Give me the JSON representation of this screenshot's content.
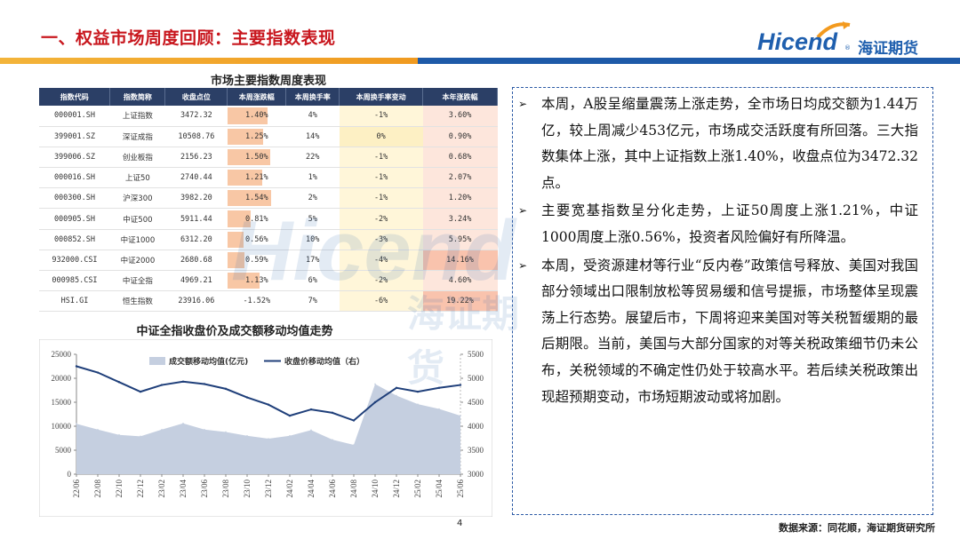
{
  "header": {
    "title": "一、权益市场周度回顾：主要指数表现",
    "logo_en": "Hicend",
    "logo_reg": "®",
    "logo_cn": "海证期货"
  },
  "table": {
    "title": "市场主要指数周度表现",
    "columns": [
      "指数代码",
      "指数简称",
      "收盘点位",
      "本周涨跌幅",
      "本周换手率",
      "本周换手率变动",
      "本年涨跌幅"
    ],
    "rows": [
      {
        "code": "000001.SH",
        "name": "上证指数",
        "close": "3472.32",
        "weekly": "1.40%",
        "weekly_val": 1.4,
        "turnover": "4%",
        "turnover_change": "-1%",
        "ytd": "3.60%"
      },
      {
        "code": "399001.SZ",
        "name": "深证成指",
        "close": "10508.76",
        "weekly": "1.25%",
        "weekly_val": 1.25,
        "turnover": "14%",
        "turnover_change": "0%",
        "ytd": "0.90%"
      },
      {
        "code": "399006.SZ",
        "name": "创业板指",
        "close": "2156.23",
        "weekly": "1.50%",
        "weekly_val": 1.5,
        "turnover": "22%",
        "turnover_change": "-1%",
        "ytd": "0.68%"
      },
      {
        "code": "000016.SH",
        "name": "上证50",
        "close": "2740.44",
        "weekly": "1.21%",
        "weekly_val": 1.21,
        "turnover": "1%",
        "turnover_change": "-1%",
        "ytd": "2.07%"
      },
      {
        "code": "000300.SH",
        "name": "沪深300",
        "close": "3982.20",
        "weekly": "1.54%",
        "weekly_val": 1.54,
        "turnover": "2%",
        "turnover_change": "-1%",
        "ytd": "1.20%"
      },
      {
        "code": "000905.SH",
        "name": "中证500",
        "close": "5911.44",
        "weekly": "0.81%",
        "weekly_val": 0.81,
        "turnover": "5%",
        "turnover_change": "-2%",
        "ytd": "3.24%"
      },
      {
        "code": "000852.SH",
        "name": "中证1000",
        "close": "6312.20",
        "weekly": "0.56%",
        "weekly_val": 0.56,
        "turnover": "10%",
        "turnover_change": "-3%",
        "ytd": "5.95%"
      },
      {
        "code": "932000.CSI",
        "name": "中证2000",
        "close": "2680.68",
        "weekly": "0.59%",
        "weekly_val": 0.59,
        "turnover": "17%",
        "turnover_change": "-4%",
        "ytd": "14.16%"
      },
      {
        "code": "000985.CSI",
        "name": "中证全指",
        "close": "4969.21",
        "weekly": "1.13%",
        "weekly_val": 1.13,
        "turnover": "6%",
        "turnover_change": "-2%",
        "ytd": "4.60%"
      },
      {
        "code": "HSI.GI",
        "name": "恒生指数",
        "close": "23916.06",
        "weekly": "-1.52%",
        "weekly_val": -1.52,
        "turnover": "7%",
        "turnover_change": "-6%",
        "ytd": "19.22%"
      }
    ]
  },
  "chart_data": {
    "type": "area",
    "title": "中证全指收盘价及成交额移动均值走势",
    "categories": [
      "22/06",
      "22/08",
      "22/10",
      "22/12",
      "23/02",
      "23/04",
      "23/06",
      "23/08",
      "23/10",
      "23/12",
      "24/02",
      "24/04",
      "24/06",
      "24/08",
      "24/10",
      "24/12",
      "25/02",
      "25/04",
      "25/06"
    ],
    "series": [
      {
        "name": "成交额移动均值(亿元)",
        "axis": "left",
        "values": [
          10500,
          9300,
          8200,
          7900,
          9300,
          10600,
          9300,
          8800,
          8000,
          7400,
          8000,
          9200,
          7200,
          6100,
          18800,
          16400,
          14600,
          13600,
          12200
        ]
      },
      {
        "name": "收盘价移动均值（右）",
        "axis": "right",
        "values": [
          5250,
          5120,
          4920,
          4720,
          4860,
          4930,
          4880,
          4780,
          4600,
          4450,
          4220,
          4350,
          4280,
          4120,
          4500,
          4800,
          4720,
          4800,
          4860
        ]
      }
    ],
    "y_left": {
      "ticks": [
        "0",
        "5000",
        "10000",
        "15000",
        "20000",
        "25000"
      ],
      "lim": [
        0,
        25000
      ]
    },
    "y_right": {
      "ticks": [
        "3000",
        "3500",
        "4000",
        "4500",
        "5000",
        "5500"
      ],
      "lim": [
        3000,
        5500
      ]
    },
    "legend_position": "top-center",
    "colors": {
      "area": "#c5cfe0",
      "line": "#1f3f7a"
    }
  },
  "commentary": [
    "本周，A股呈缩量震荡上涨走势，全市场日均成交额为1.44万亿，较上周减少453亿元，市场成交活跃度有所回落。三大指数集体上涨，其中上证指数上涨1.40%，收盘点位为3472.32点。",
    "主要宽基指数呈分化走势，上证50周度上涨1.21%，中证1000周度上涨0.56%，投资者风险偏好有所降温。",
    "本周，受资源建材等行业“反内卷”政策信号释放、美国对我国部分领域出口限制放松等贸易缓和信号提振，市场整体呈现震荡上行态势。展望后市，下周将迎来美国对等关税暂缓期的最后期限。当前，美国与大部分国家的对等关税政策细节仍未公布，关税领域的不确定性仍处于较高水平。若后续关税政策出现超预期变动，市场短期波动或将加剧。"
  ],
  "footer": {
    "page_number": "4",
    "source": "数据来源：同花顺，海证期货研究所"
  },
  "watermark": {
    "en": "Hicend",
    "cn": "海证期货"
  }
}
